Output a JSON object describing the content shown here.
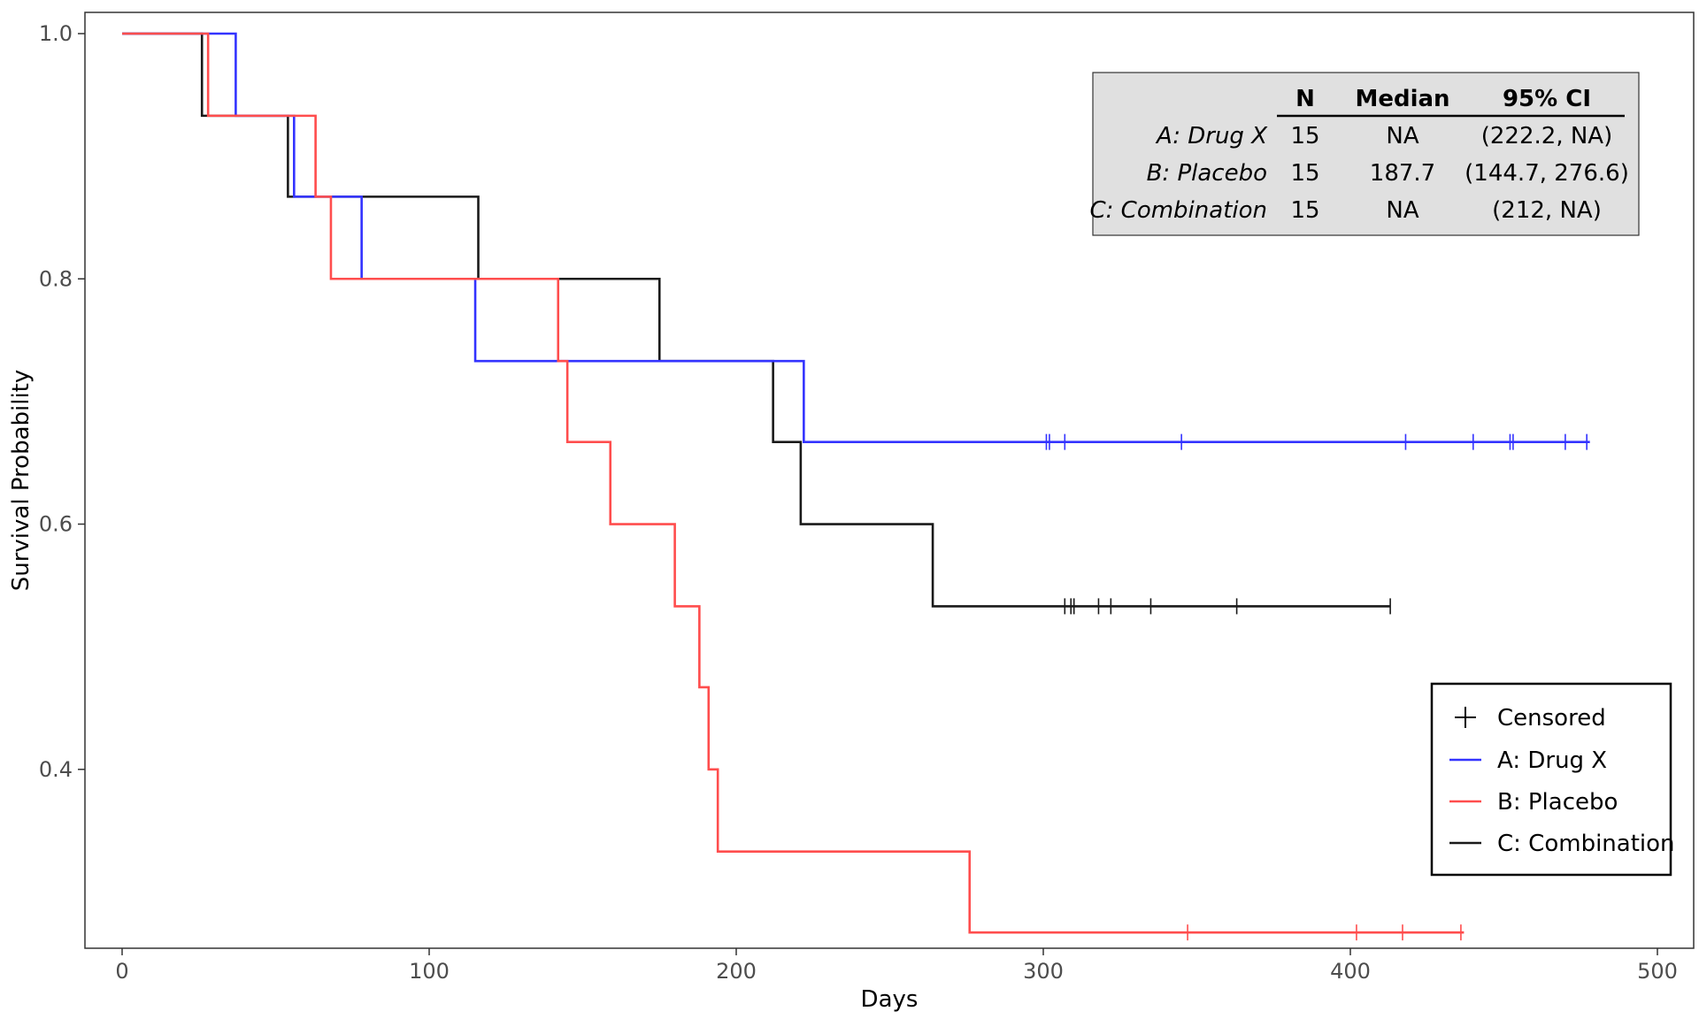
{
  "chart_data": {
    "type": "line",
    "subtype": "kaplan-meier step curve",
    "xlabel": "Days",
    "ylabel": "Survival Probability",
    "xlim": [
      0,
      500
    ],
    "ylim": [
      0.27,
      1.0
    ],
    "x_ticks": [
      0,
      100,
      200,
      300,
      400,
      500
    ],
    "y_ticks": [
      0.4,
      0.6,
      0.8,
      1.0
    ],
    "x_tick_labels": [
      "0",
      "100",
      "200",
      "300",
      "400",
      "500"
    ],
    "y_tick_labels": [
      "0.4",
      "0.6",
      "0.8",
      "1.0"
    ],
    "grid": false,
    "legend_position": "bottom-right",
    "series": [
      {
        "name": "A: Drug X",
        "color": "#3333ff",
        "x": [
          0,
          37,
          56,
          78,
          115,
          222,
          478
        ],
        "y": [
          1.0,
          0.933,
          0.867,
          0.8,
          0.733,
          0.667,
          0.667
        ],
        "censored_x": [
          301,
          302,
          307,
          345,
          418,
          440,
          452,
          453,
          470,
          477
        ]
      },
      {
        "name": "B: Placebo",
        "color": "#ff4d4d",
        "x": [
          0,
          28,
          63,
          68,
          142,
          145,
          159,
          180,
          188,
          191,
          194,
          276,
          437
        ],
        "y": [
          1.0,
          0.933,
          0.867,
          0.8,
          0.733,
          0.667,
          0.6,
          0.533,
          0.467,
          0.4,
          0.333,
          0.267,
          0.267
        ],
        "censored_x": [
          347,
          402,
          417,
          436
        ]
      },
      {
        "name": "C: Combination",
        "color": "#1a1a1a",
        "x": [
          0,
          26,
          54,
          116,
          175,
          212,
          221,
          264,
          413
        ],
        "y": [
          1.0,
          0.933,
          0.867,
          0.8,
          0.733,
          0.667,
          0.6,
          0.533,
          0.533
        ],
        "censored_x": [
          307,
          309,
          310,
          318,
          322,
          335,
          363,
          413
        ]
      }
    ],
    "summary_table": {
      "columns": [
        "N",
        "Median",
        "95% CI"
      ],
      "rows": [
        {
          "name": "A: Drug X",
          "n": "15",
          "median": "NA",
          "ci": "(222.2, NA)"
        },
        {
          "name": "B: Placebo",
          "n": "15",
          "median": "187.7",
          "ci": "(144.7, 276.6)"
        },
        {
          "name": "C: Combination",
          "n": "15",
          "median": "NA",
          "ci": "(212, NA)"
        }
      ]
    },
    "legend": {
      "censored_label": "Censored",
      "censored_symbol": "+",
      "items": [
        "A: Drug X",
        "B: Placebo",
        "C: Combination"
      ]
    }
  }
}
